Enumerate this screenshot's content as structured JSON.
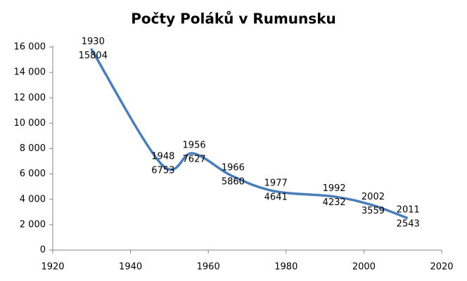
{
  "chart_data": {
    "type": "line",
    "title": "Počty Poláků v Rumunsku",
    "x": [
      1930,
      1948,
      1956,
      1966,
      1977,
      1992,
      2002,
      2011
    ],
    "series": [
      {
        "name": "Počty Poláků",
        "color": "#4a7ebb",
        "values": [
          15804,
          6753,
          7627,
          5860,
          4641,
          4232,
          3559,
          2543
        ]
      }
    ],
    "xlim": [
      1920,
      2020
    ],
    "xticks": [
      1920,
      1940,
      1960,
      1980,
      2000,
      2020
    ],
    "ylim": [
      0,
      16000
    ],
    "yticks": [
      0,
      {
        "value": 2000,
        "label": "2 000"
      },
      {
        "value": 4000,
        "label": "4 000"
      },
      {
        "value": 6000,
        "label": "6 000"
      },
      {
        "value": 8000,
        "label": "8 000"
      },
      {
        "value": 10000,
        "label": "10 000"
      },
      {
        "value": 12000,
        "label": "12 000"
      },
      {
        "value": 14000,
        "label": "14 000"
      },
      {
        "value": 16000,
        "label": "16 000"
      }
    ],
    "smooth": true
  }
}
